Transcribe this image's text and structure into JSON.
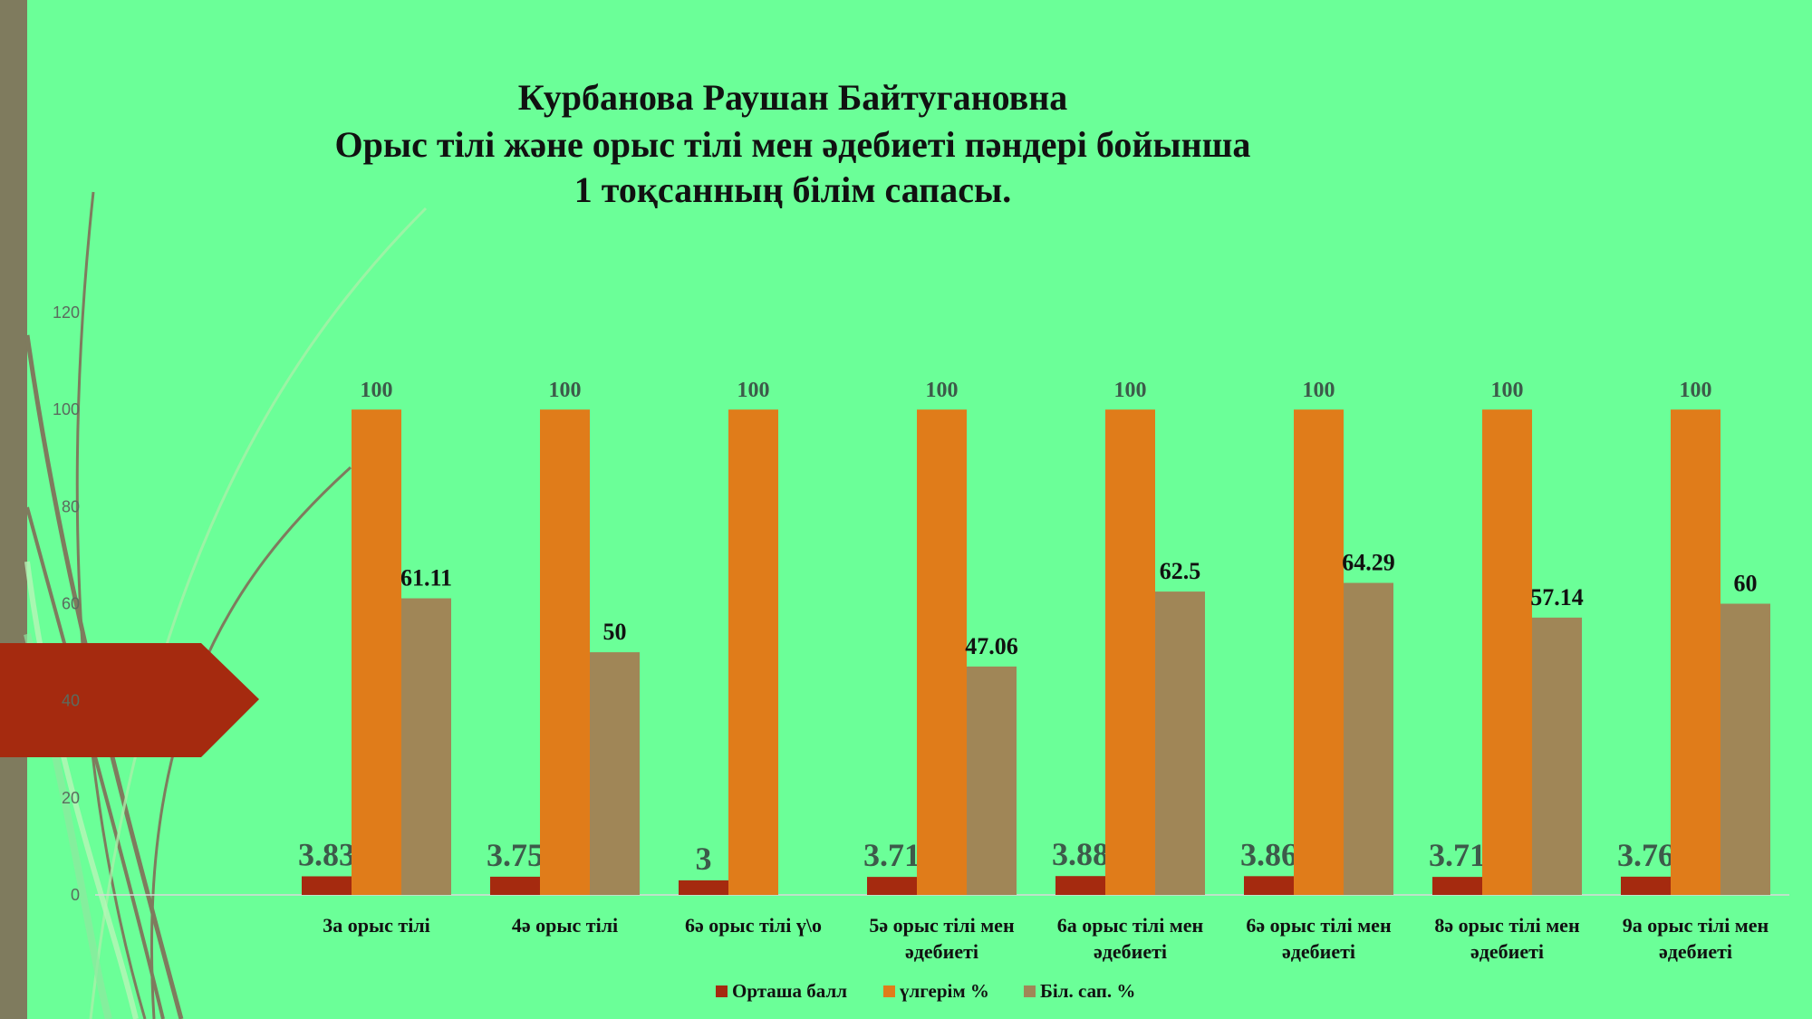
{
  "chart_data": {
    "type": "bar",
    "title_lines": [
      "Курбанова Раушан Байтугановна",
      "Орыс тілі және орыс тілі мен әдебиеті пәндері бойынша",
      "1 тоқсанның білім сапасы."
    ],
    "categories": [
      [
        "3а  орыс тілі"
      ],
      [
        "4ә  орыс тілі"
      ],
      [
        "6ә орыс тілі ү\\о"
      ],
      [
        "5ә орыс тілі мен",
        "әдебиеті"
      ],
      [
        "6а орыс тілі мен",
        "әдебиеті"
      ],
      [
        "6ә орыс тілі мен",
        "әдебиеті"
      ],
      [
        "8ә орыс тілі мен",
        "әдебиеті"
      ],
      [
        "9а орыс тілі мен",
        "әдебиеті"
      ]
    ],
    "series": [
      {
        "name": "Орташа балл",
        "color": "#a52a0f",
        "values": [
          3.83,
          3.75,
          3,
          3.71,
          3.88,
          3.86,
          3.71,
          3.76
        ]
      },
      {
        "name": "үлгерім %",
        "color": "#e07c1a",
        "values": [
          100,
          100,
          100,
          100,
          100,
          100,
          100,
          100
        ]
      },
      {
        "name": "Біл. сап. %",
        "color": "#a08657",
        "values": [
          61.11,
          50,
          null,
          47.06,
          62.5,
          64.29,
          57.14,
          60
        ]
      }
    ],
    "yticks": [
      0,
      20,
      40,
      60,
      80,
      100,
      120
    ],
    "ylim": [
      0,
      120
    ],
    "legend_position": "bottom",
    "grid": false
  },
  "colors": {
    "background": "#6bff98",
    "left_bar": "#7f7b5e",
    "arrow": "#a52a0f"
  }
}
